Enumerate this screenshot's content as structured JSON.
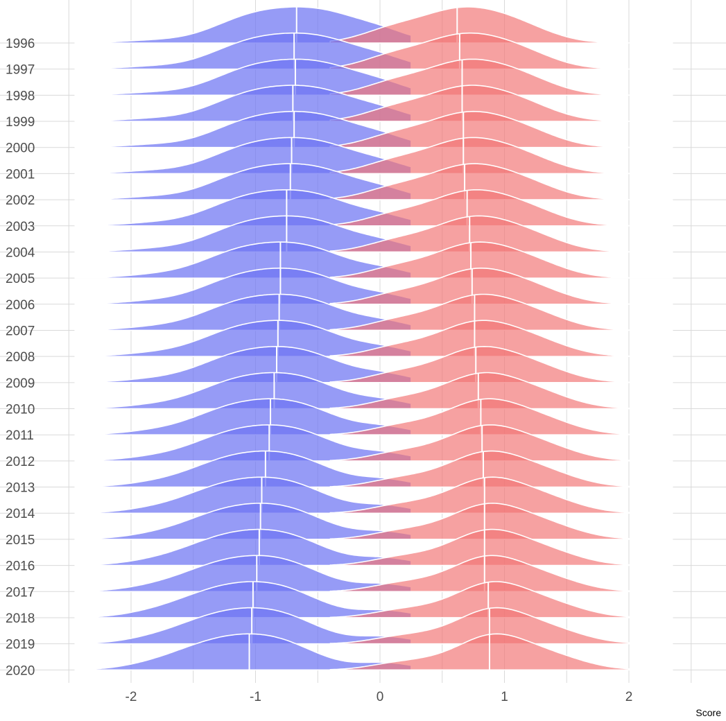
{
  "chart_data": {
    "type": "ridgeline",
    "title": "",
    "xlabel": "Score",
    "ylabel": "",
    "xlim": [
      -2.5,
      2.5
    ],
    "x_ticks": [
      "-2",
      "-1",
      "0",
      "1",
      "2"
    ],
    "x_tick_values": [
      -2,
      -1,
      0,
      1,
      2
    ],
    "grid": true,
    "colors": {
      "left": "#6e74f2",
      "right": "#f27474",
      "median_line": "#ffffff",
      "grid": "#d9d9d9"
    },
    "categories": [
      "1996",
      "1997",
      "1998",
      "1999",
      "2000",
      "2001",
      "2002",
      "2003",
      "2004",
      "2005",
      "2006",
      "2007",
      "2008",
      "2009",
      "2010",
      "2011",
      "2012",
      "2013",
      "2014",
      "2015",
      "2016",
      "2017",
      "2018",
      "2019",
      "2020"
    ],
    "series": [
      {
        "color": "#6e74f2",
        "medians": [
          -0.67,
          -0.69,
          -0.68,
          -0.7,
          -0.69,
          -0.71,
          -0.72,
          -0.75,
          -0.75,
          -0.8,
          -0.8,
          -0.81,
          -0.82,
          -0.83,
          -0.85,
          -0.88,
          -0.89,
          -0.92,
          -0.95,
          -0.96,
          -0.97,
          -0.99,
          -1.02,
          -1.03,
          -1.05
        ]
      },
      {
        "color": "#f27474",
        "medians": [
          0.62,
          0.64,
          0.66,
          0.66,
          0.67,
          0.67,
          0.68,
          0.7,
          0.72,
          0.73,
          0.74,
          0.76,
          0.76,
          0.77,
          0.79,
          0.81,
          0.82,
          0.83,
          0.84,
          0.84,
          0.84,
          0.84,
          0.87,
          0.88,
          0.88
        ]
      }
    ]
  }
}
